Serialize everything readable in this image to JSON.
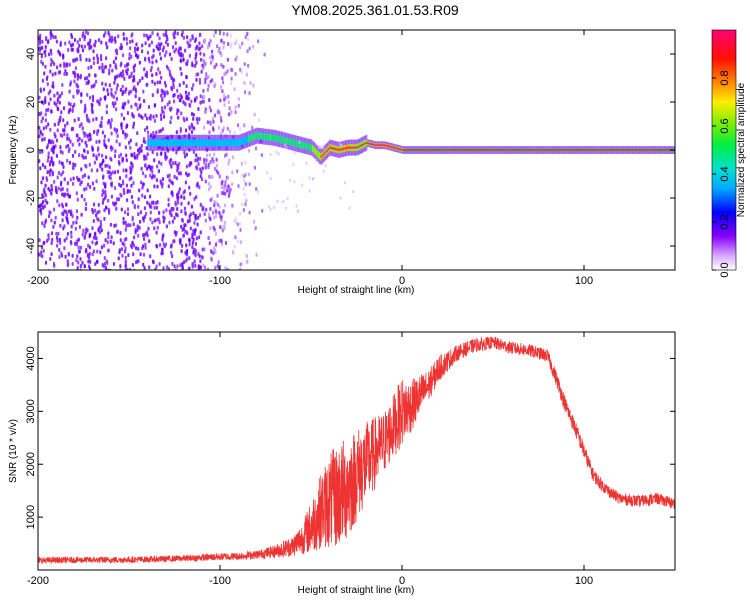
{
  "title": "YM08.2025.361.01.53.R09",
  "colors": {
    "snr_line": "#ee3333",
    "spectrum_strong": "#ee3355",
    "spectrum_mid": "#22dd88",
    "spectrum_low": "#6a00ff"
  },
  "chart_data": [
    {
      "type": "heatmap",
      "title": "",
      "xlabel": "Height of straight line (km)",
      "ylabel": "Frequency (Hz)",
      "xlim": [
        -200,
        150
      ],
      "ylim": [
        -50,
        50
      ],
      "x_ticks": [
        -200,
        -100,
        0,
        100
      ],
      "y_ticks": [
        -40,
        -20,
        0,
        20,
        40
      ],
      "grid": false,
      "ridge": {
        "x": [
          -140,
          -120,
          -100,
          -90,
          -80,
          -70,
          -60,
          -50,
          -45,
          -40,
          -35,
          -30,
          -25,
          -20,
          -15,
          -10,
          0,
          20,
          50,
          100,
          150
        ],
        "frequency": [
          3,
          3,
          3,
          3,
          6,
          5,
          3,
          1,
          -3,
          1,
          0,
          1,
          1,
          3,
          2,
          2,
          0,
          0,
          0,
          0,
          0
        ]
      },
      "noise_region": {
        "x_from": -200,
        "x_to": -80,
        "frequency_from": -50,
        "frequency_to": 50
      },
      "colorbar": {
        "label": "Normalized spectral amplitude",
        "range": [
          0,
          1
        ],
        "ticks": [
          "0.0",
          "0.2",
          "0.4",
          "0.6",
          "0.8"
        ]
      }
    },
    {
      "type": "line",
      "title": "",
      "xlabel": "Height of straight line (km)",
      "ylabel": "SNR (10 * v/v)",
      "xlim": [
        -200,
        150
      ],
      "ylim": [
        0,
        4500
      ],
      "x_ticks": [
        -200,
        -100,
        0,
        100
      ],
      "y_ticks": [
        1000,
        2000,
        3000,
        4000
      ],
      "grid": false,
      "series": [
        {
          "x": [
            -200,
            -180,
            -160,
            -140,
            -120,
            -100,
            -90,
            -80,
            -70,
            -60,
            -55,
            -50,
            -45,
            -40,
            -35,
            -30,
            -25,
            -20,
            -15,
            -10,
            -5,
            0,
            5,
            10,
            15,
            20,
            25,
            30,
            40,
            50,
            60,
            70,
            80,
            85,
            90,
            95,
            100,
            105,
            110,
            115,
            120,
            130,
            140,
            150
          ],
          "values": [
            180,
            190,
            190,
            200,
            220,
            250,
            260,
            290,
            350,
            450,
            600,
            800,
            1100,
            1300,
            1400,
            1550,
            1800,
            2000,
            2200,
            2400,
            2700,
            3000,
            3100,
            3300,
            3500,
            3800,
            3950,
            4100,
            4250,
            4300,
            4200,
            4150,
            4050,
            3600,
            3100,
            2700,
            2250,
            1800,
            1600,
            1450,
            1350,
            1300,
            1350,
            1250
          ],
          "noise_amplitude": [
            60,
            60,
            60,
            60,
            60,
            70,
            70,
            80,
            120,
            200,
            300,
            500,
            700,
            900,
            1000,
            1000,
            900,
            800,
            700,
            600,
            600,
            650,
            500,
            400,
            300,
            250,
            200,
            150,
            130,
            120,
            120,
            120,
            120,
            150,
            150,
            150,
            150,
            130,
            120,
            110,
            110,
            110,
            110,
            110
          ]
        }
      ]
    }
  ]
}
